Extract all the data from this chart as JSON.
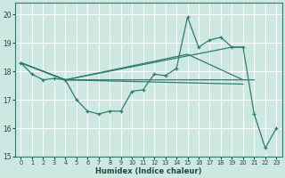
{
  "xlabel": "Humidex (Indice chaleur)",
  "xlim": [
    -0.5,
    23.5
  ],
  "ylim": [
    15.0,
    20.4
  ],
  "yticks": [
    15,
    16,
    17,
    18,
    19,
    20
  ],
  "xticks": [
    0,
    1,
    2,
    3,
    4,
    5,
    6,
    7,
    8,
    9,
    10,
    11,
    12,
    13,
    14,
    15,
    16,
    17,
    18,
    19,
    20,
    21,
    22,
    23
  ],
  "bg_color": "#cce8e0",
  "grid_color": "#ffffff",
  "line_color": "#2e7d6e",
  "lines": [
    {
      "x": [
        0,
        1,
        2,
        3,
        4,
        5,
        6,
        7,
        8,
        9,
        10,
        11,
        12,
        13,
        14,
        15,
        16,
        17,
        18,
        19,
        20,
        21,
        22,
        23
      ],
      "y": [
        18.3,
        17.9,
        17.7,
        17.75,
        17.7,
        17.0,
        16.6,
        16.5,
        16.6,
        16.6,
        17.3,
        17.35,
        17.9,
        17.85,
        18.1,
        19.9,
        18.85,
        19.1,
        19.2,
        18.85,
        18.85,
        16.5,
        15.3,
        16.0
      ],
      "marker": true
    },
    {
      "x": [
        0,
        4,
        20,
        21
      ],
      "y": [
        18.3,
        17.7,
        17.7,
        17.7
      ],
      "marker": false
    },
    {
      "x": [
        0,
        4,
        19,
        20
      ],
      "y": [
        18.3,
        17.7,
        18.85,
        18.85
      ],
      "marker": false
    },
    {
      "x": [
        0,
        4,
        15,
        20
      ],
      "y": [
        18.3,
        17.7,
        18.6,
        17.7
      ],
      "marker": false
    },
    {
      "x": [
        0,
        4,
        20
      ],
      "y": [
        18.3,
        17.7,
        17.55
      ],
      "marker": false
    }
  ]
}
